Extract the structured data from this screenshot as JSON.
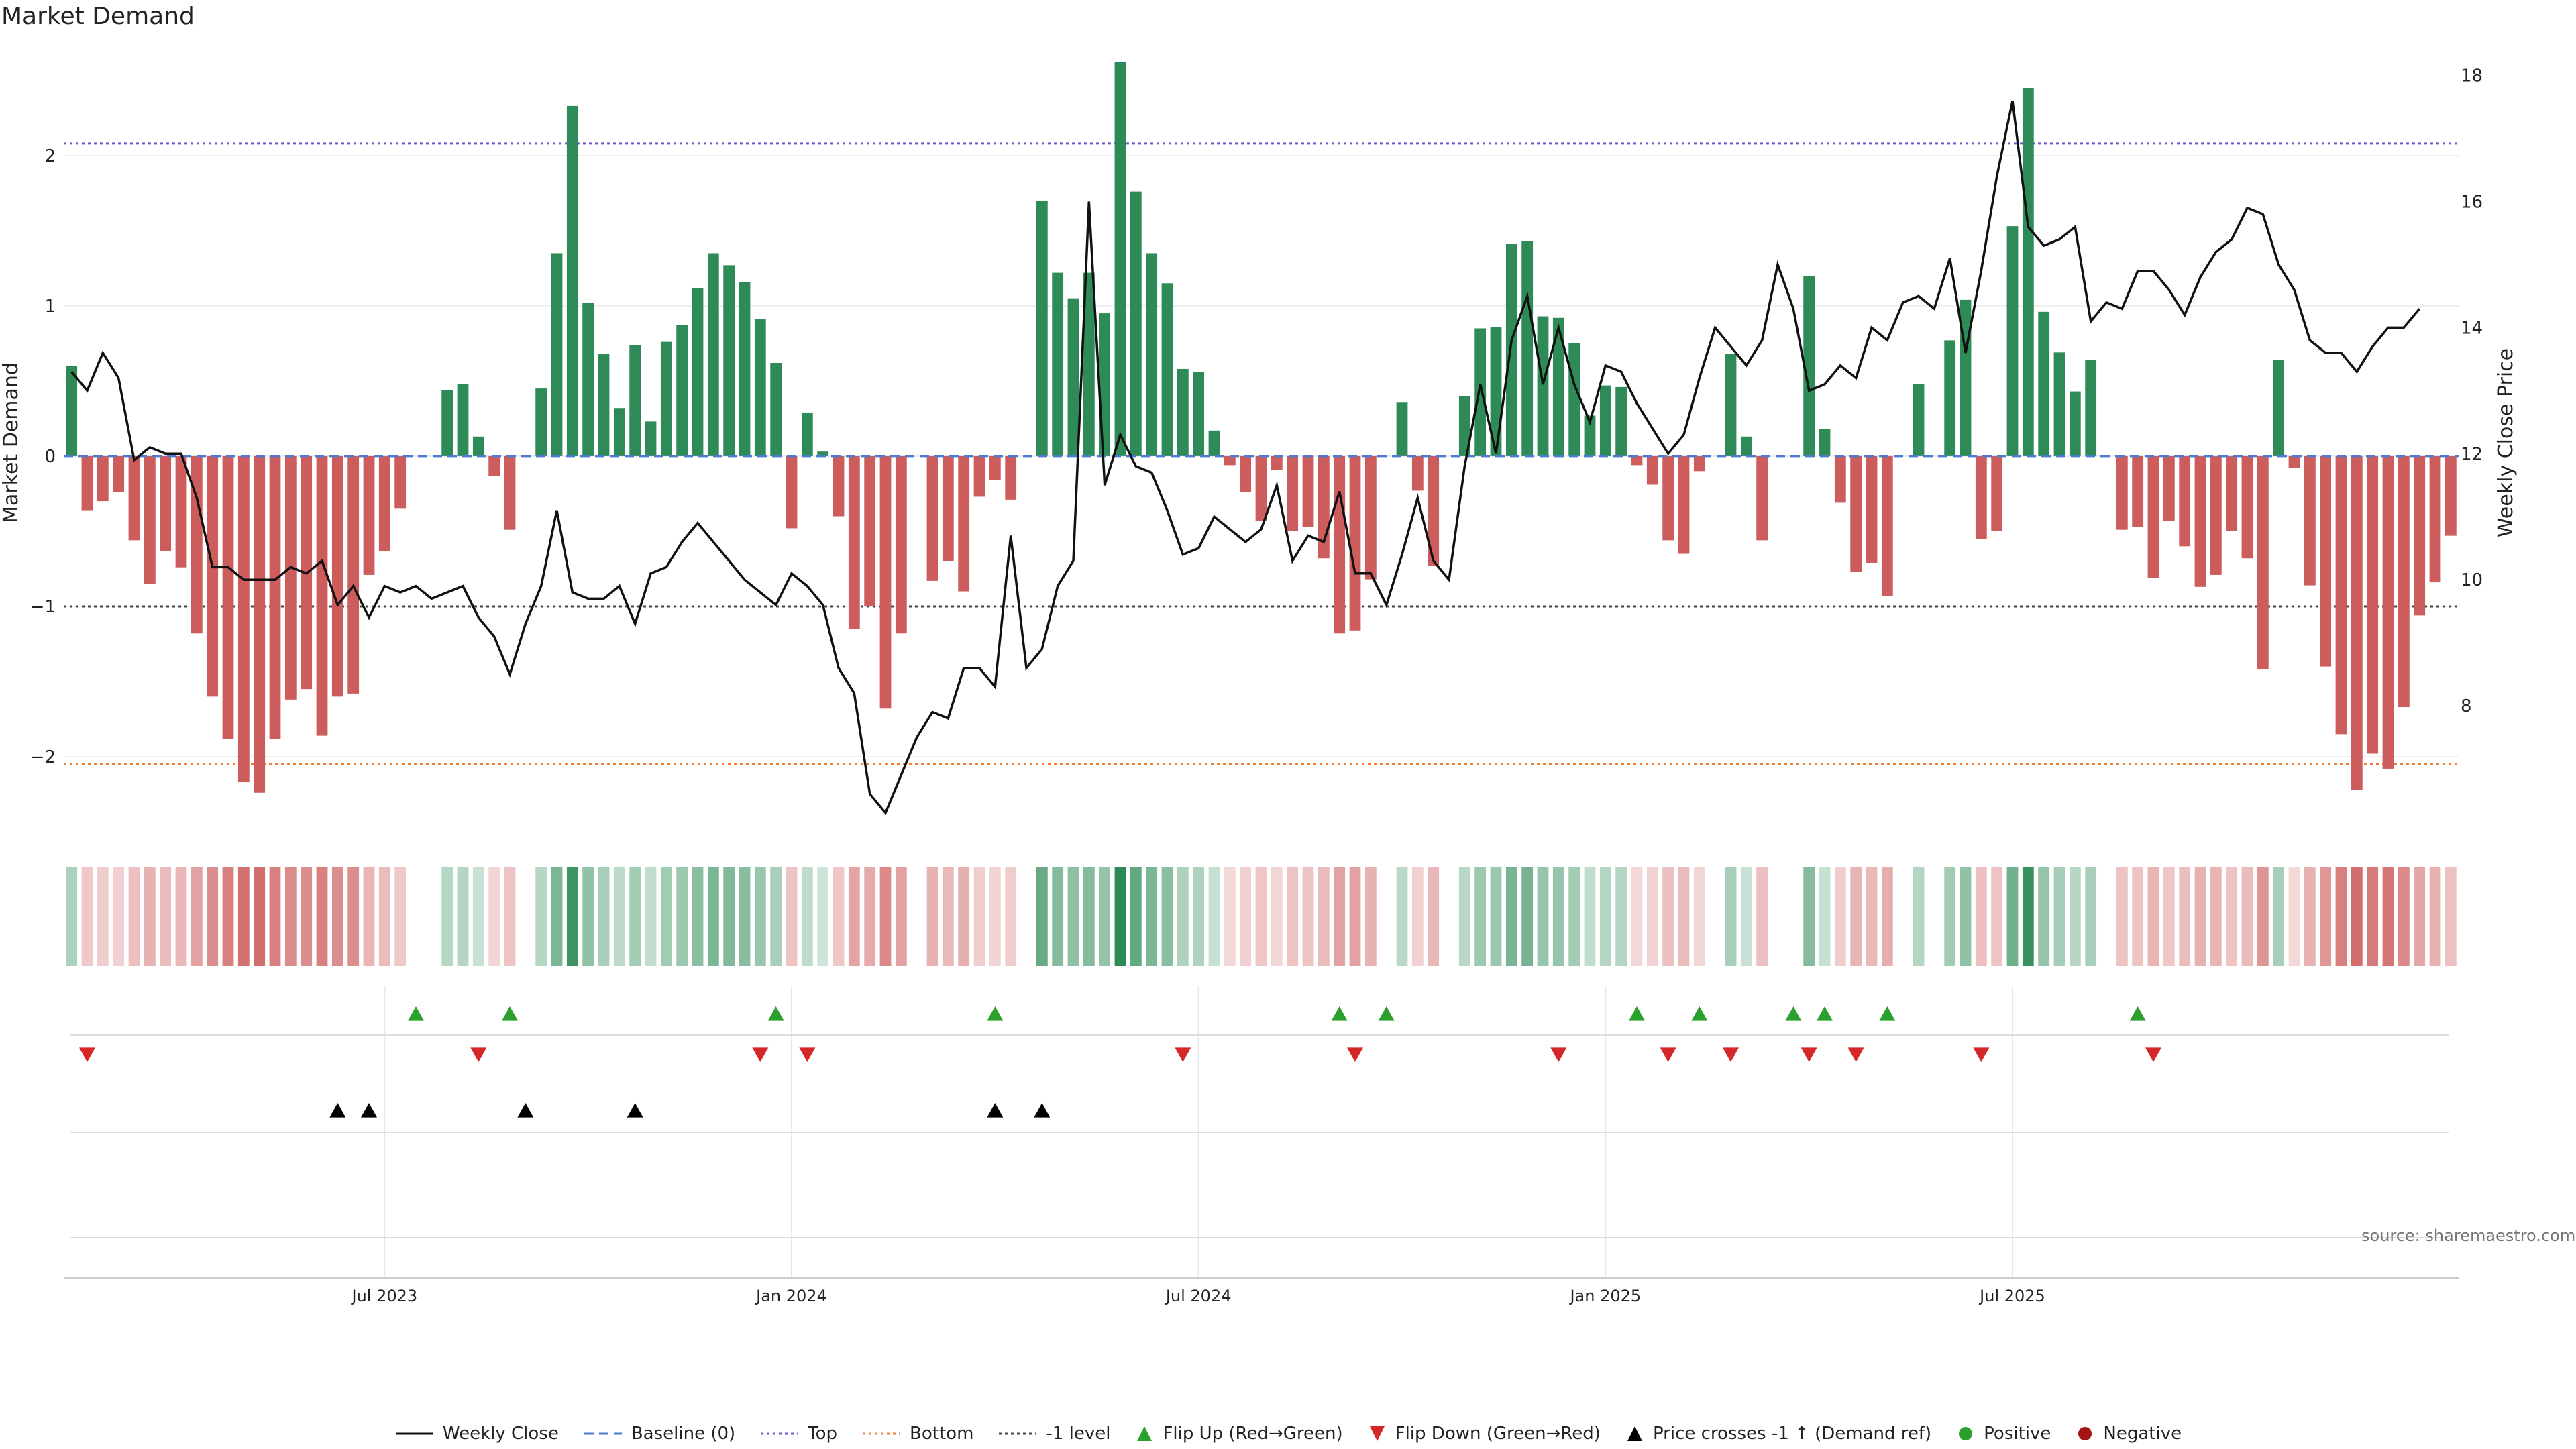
{
  "title": "Market Demand",
  "source": "source: sharemaestro.com",
  "colors": {
    "pos": "#2e8b57",
    "neg": "#cd5c5c",
    "price": "#111111",
    "top": "#6b5bd6",
    "bottom": "#f08030",
    "minus1": "#444444",
    "baseline": "#4a7bd0",
    "up": "#2ca02c",
    "down": "#d62728",
    "cross": "#000000",
    "posDot": "#2ca02c",
    "negDot": "#a31515"
  },
  "chart_data": {
    "type": "bar",
    "title": "Market Demand",
    "ylabel": "Market Demand",
    "y2label": "Weekly Close Price",
    "ylim": [
      -2.5,
      2.7
    ],
    "y2lim": [
      6.0,
      18.4
    ],
    "yticks": [
      2,
      1,
      0,
      -1,
      -2
    ],
    "ytick_labels": [
      "2",
      "1",
      "0",
      "−1",
      "−2"
    ],
    "y2ticks": [
      18,
      16,
      14,
      12,
      10,
      8
    ],
    "x_tick_labels": [
      {
        "label": "Jul 2023",
        "index": 20
      },
      {
        "label": "Jan 2024",
        "index": 46
      },
      {
        "label": "Jul 2024",
        "index": 72
      },
      {
        "label": "Jan 2025",
        "index": 98
      },
      {
        "label": "Jul 2025",
        "index": 124
      }
    ],
    "reference_lines": {
      "top": 2.08,
      "bottom": -2.05,
      "minus1": -1.0,
      "baseline": 0
    },
    "demand": [
      0.6,
      -0.36,
      -0.3,
      -0.24,
      -0.56,
      -0.85,
      -0.63,
      -0.74,
      -1.18,
      -1.6,
      -1.88,
      -2.17,
      -2.24,
      -1.88,
      -1.62,
      -1.55,
      -1.86,
      -1.6,
      -1.58,
      -0.79,
      -0.63,
      -0.35,
      0,
      0,
      0.44,
      0.48,
      0.13,
      -0.13,
      -0.49,
      0,
      0.45,
      1.35,
      2.33,
      1.02,
      0.68,
      0.32,
      0.74,
      0.23,
      0.76,
      0.87,
      1.12,
      1.35,
      1.27,
      1.16,
      0.91,
      0.62,
      -0.48,
      0.29,
      0.03,
      -0.4,
      -1.15,
      -1.0,
      -1.68,
      -1.18,
      0,
      -0.83,
      -0.7,
      -0.9,
      -0.27,
      -0.16,
      -0.29,
      0,
      1.7,
      1.22,
      1.05,
      1.22,
      0.95,
      2.62,
      1.76,
      1.35,
      1.15,
      0.58,
      0.56,
      0.17,
      -0.06,
      -0.24,
      -0.43,
      -0.09,
      -0.5,
      -0.47,
      -0.68,
      -1.18,
      -1.16,
      -0.82,
      0,
      0.36,
      -0.23,
      -0.73,
      0,
      0.4,
      0.85,
      0.86,
      1.41,
      1.43,
      0.93,
      0.92,
      0.75,
      0.27,
      0.47,
      0.46,
      -0.06,
      -0.19,
      -0.56,
      -0.65,
      -0.1,
      0,
      0.68,
      0.13,
      -0.56,
      0,
      0,
      1.2,
      0.18,
      -0.31,
      -0.77,
      -0.71,
      -0.93,
      0,
      0.48,
      0,
      0.77,
      1.04,
      -0.55,
      -0.5,
      1.53,
      2.45,
      0.96,
      0.69,
      0.43,
      0.64,
      0,
      -0.49,
      -0.47,
      -0.81,
      -0.43,
      -0.6,
      -0.87,
      -0.79,
      -0.5,
      -0.68,
      -1.42,
      0.64,
      -0.08,
      -0.86,
      -1.4,
      -1.85,
      -2.22,
      -1.98,
      -2.08,
      -1.67,
      -1.06,
      -0.84,
      -0.53
    ],
    "price": [
      13.3,
      13.0,
      13.6,
      13.2,
      11.9,
      12.1,
      12.0,
      12.0,
      11.3,
      10.2,
      10.2,
      10.0,
      10.0,
      10.0,
      10.2,
      10.1,
      10.3,
      9.6,
      9.9,
      9.4,
      9.9,
      9.8,
      9.9,
      9.7,
      9.8,
      9.9,
      9.4,
      9.1,
      8.5,
      9.3,
      9.9,
      11.1,
      9.8,
      9.7,
      9.7,
      9.9,
      9.3,
      10.1,
      10.2,
      10.6,
      10.9,
      10.6,
      10.3,
      10.0,
      9.8,
      9.6,
      10.1,
      9.9,
      9.6,
      8.6,
      8.2,
      6.6,
      6.3,
      6.9,
      7.5,
      7.9,
      7.8,
      8.6,
      8.6,
      8.3,
      10.7,
      8.6,
      8.9,
      9.9,
      10.3,
      16.0,
      11.5,
      12.3,
      11.8,
      11.7,
      11.1,
      10.4,
      10.5,
      11.0,
      10.8,
      10.6,
      10.8,
      11.5,
      10.3,
      10.7,
      10.6,
      11.4,
      10.1,
      10.1,
      9.6,
      10.4,
      11.3,
      10.3,
      10.0,
      11.8,
      13.1,
      12.0,
      13.8,
      14.5,
      13.1,
      14.0,
      13.1,
      12.5,
      13.4,
      13.3,
      12.8,
      12.4,
      12.0,
      12.3,
      13.2,
      14.0,
      13.7,
      13.4,
      13.8,
      15.0,
      14.3,
      13.0,
      13.1,
      13.4,
      13.2,
      14.0,
      13.8,
      14.4,
      14.5,
      14.3,
      15.1,
      13.6,
      14.9,
      16.4,
      17.6,
      15.6,
      15.3,
      15.4,
      15.6,
      14.1,
      14.4,
      14.3,
      14.9,
      14.9,
      14.6,
      14.2,
      14.8,
      15.2,
      15.4,
      15.9,
      15.8,
      15.0,
      14.6,
      13.8,
      13.6,
      13.6,
      13.3,
      13.7,
      14.0,
      14.0,
      14.3
    ],
    "flip_up": [
      22,
      28,
      45,
      59,
      81,
      84,
      100,
      104,
      110,
      112,
      116,
      132
    ],
    "flip_down": [
      1,
      26,
      44,
      47,
      71,
      82,
      95,
      102,
      106,
      111,
      114,
      122,
      133
    ],
    "price_crosses": [
      17,
      19,
      29,
      36,
      59,
      62
    ],
    "positive_count_note": "",
    "legend": [
      {
        "kind": "line",
        "label": "Weekly Close",
        "color": "#111111",
        "dash": ""
      },
      {
        "kind": "line",
        "label": "Baseline (0)",
        "color": "#4a7bd0",
        "dash": "14,8"
      },
      {
        "kind": "line",
        "label": "Top",
        "color": "#6b5bd6",
        "dash": "4,5"
      },
      {
        "kind": "line",
        "label": "Bottom",
        "color": "#f08030",
        "dash": "4,5"
      },
      {
        "kind": "line",
        "label": "-1 level",
        "color": "#444444",
        "dash": "4,5"
      },
      {
        "kind": "tri-up",
        "label": "Flip Up (Red→Green)",
        "color": "#2ca02c"
      },
      {
        "kind": "tri-down",
        "label": "Flip Down (Green→Red)",
        "color": "#d62728"
      },
      {
        "kind": "tri-up",
        "label": "Price crosses -1 ↑ (Demand ref)",
        "color": "#000000"
      },
      {
        "kind": "dot",
        "label": "Positive",
        "color": "#2ca02c"
      },
      {
        "kind": "dot",
        "label": "Negative",
        "color": "#a31515"
      }
    ]
  }
}
